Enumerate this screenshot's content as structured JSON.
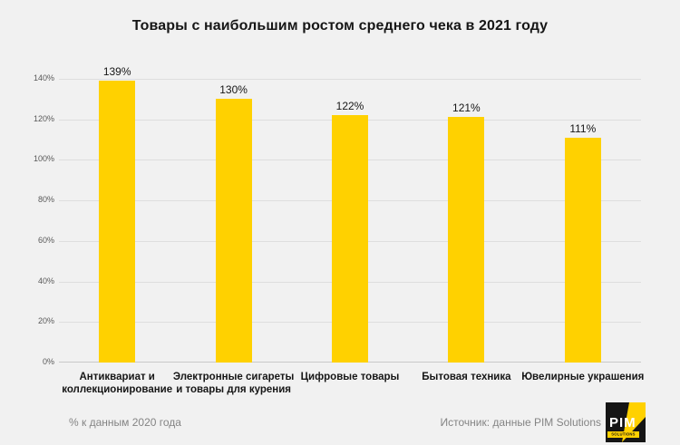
{
  "title": "Товары с наибольшим ростом среднего чека в 2021 году",
  "footer": {
    "note": "% к данным 2020 года",
    "source": "Источник: данные PIM Solutions"
  },
  "logo": {
    "name": "PIM",
    "sub": "SOLUTIONS"
  },
  "colors": {
    "background": "#F1F1F1",
    "bar": "#FFD100",
    "gridline": "#DEDEDE",
    "axis_line": "#C8C8C8",
    "tick_text": "#595959",
    "label_text": "#161616",
    "footer_text": "#848484"
  },
  "chart_data": {
    "type": "bar",
    "title": "Товары с наибольшим ростом среднего чека в 2021 году",
    "categories": [
      "Антиквариат и\nколлекционирование",
      "Электронные сигареты\nи товары для курения",
      "Цифровые товары",
      "Бытовая техника",
      "Ювелирные украшения"
    ],
    "values": [
      139,
      130,
      122,
      121,
      111
    ],
    "value_labels": [
      "139%",
      "130%",
      "122%",
      "121%",
      "111%"
    ],
    "xlabel": "",
    "ylabel": "",
    "ylim": [
      0,
      140
    ],
    "yticks": [
      0,
      20,
      40,
      60,
      80,
      100,
      120,
      140
    ],
    "ytick_labels": [
      "0%",
      "20%",
      "40%",
      "60%",
      "80%",
      "100%",
      "120%",
      "140%"
    ],
    "grid": true,
    "legend": false,
    "note": "% к данным 2020 года",
    "source": "Источник: данные PIM Solutions"
  }
}
